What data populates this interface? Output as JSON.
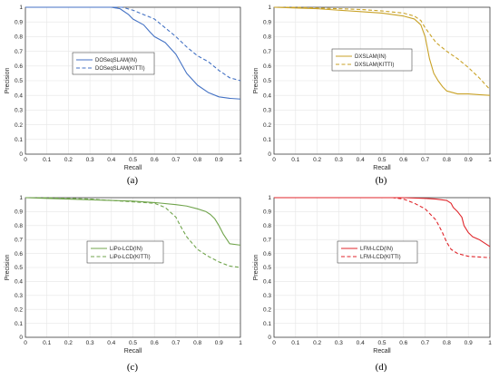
{
  "chart_data": [
    {
      "type": "line",
      "panel": "(a)",
      "xlabel": "Recall",
      "ylabel": "Precision",
      "xlim": [
        0,
        1
      ],
      "ylim": [
        0,
        1
      ],
      "grid": true,
      "legend_placement": "center",
      "xticks": [
        "0",
        "0.1",
        "0.2",
        "0.3",
        "0.4",
        "0.5",
        "0.6",
        "0.7",
        "0.8",
        "0.9",
        "1"
      ],
      "yticks": [
        "0",
        "0.1",
        "0.2",
        "0.3",
        "0.4",
        "0.5",
        "0.6",
        "0.7",
        "0.8",
        "0.9",
        "1"
      ],
      "series": [
        {
          "name": "DOSeqSLAM(IN)",
          "color": "#4472c4",
          "dash": "solid",
          "x": [
            0,
            0.1,
            0.2,
            0.3,
            0.4,
            0.44,
            0.48,
            0.5,
            0.55,
            0.58,
            0.6,
            0.65,
            0.7,
            0.75,
            0.8,
            0.85,
            0.9,
            0.95,
            1
          ],
          "y": [
            1,
            1,
            1,
            1,
            1,
            0.99,
            0.95,
            0.92,
            0.88,
            0.83,
            0.8,
            0.76,
            0.68,
            0.55,
            0.47,
            0.42,
            0.39,
            0.38,
            0.375
          ]
        },
        {
          "name": "DOSeqSLAM(KITTI)",
          "color": "#4472c4",
          "dash": "dashed",
          "x": [
            0,
            0.1,
            0.2,
            0.3,
            0.4,
            0.45,
            0.5,
            0.55,
            0.6,
            0.65,
            0.7,
            0.75,
            0.8,
            0.85,
            0.9,
            0.95,
            1
          ],
          "y": [
            1,
            1,
            1,
            1,
            1,
            1,
            0.98,
            0.95,
            0.92,
            0.86,
            0.8,
            0.73,
            0.67,
            0.63,
            0.57,
            0.52,
            0.5
          ]
        }
      ]
    },
    {
      "type": "line",
      "panel": "(b)",
      "xlabel": "Recall",
      "ylabel": "Precision",
      "xlim": [
        0,
        1
      ],
      "ylim": [
        0,
        1
      ],
      "grid": true,
      "legend_placement": "center",
      "xticks": [
        "0",
        "0.1",
        "0.2",
        "0.3",
        "0.4",
        "0.5",
        "0.6",
        "0.7",
        "0.8",
        "0.9",
        "1"
      ],
      "yticks": [
        "0",
        "0.1",
        "0.2",
        "0.3",
        "0.4",
        "0.5",
        "0.6",
        "0.7",
        "0.8",
        "0.9",
        "1"
      ],
      "series": [
        {
          "name": "DXSLAM(IN)",
          "color": "#c9a227",
          "dash": "solid",
          "x": [
            0,
            0.1,
            0.2,
            0.3,
            0.4,
            0.5,
            0.6,
            0.65,
            0.68,
            0.7,
            0.72,
            0.74,
            0.76,
            0.78,
            0.8,
            0.85,
            0.9,
            0.95,
            1
          ],
          "y": [
            1,
            0.995,
            0.99,
            0.98,
            0.97,
            0.96,
            0.94,
            0.92,
            0.88,
            0.8,
            0.65,
            0.55,
            0.5,
            0.46,
            0.43,
            0.41,
            0.41,
            0.405,
            0.4
          ]
        },
        {
          "name": "DXSLAM(KITTI)",
          "color": "#c9a227",
          "dash": "dashed",
          "x": [
            0,
            0.1,
            0.2,
            0.3,
            0.4,
            0.5,
            0.6,
            0.65,
            0.68,
            0.7,
            0.72,
            0.75,
            0.8,
            0.85,
            0.9,
            0.95,
            1
          ],
          "y": [
            1,
            1,
            0.995,
            0.99,
            0.985,
            0.975,
            0.96,
            0.94,
            0.91,
            0.86,
            0.82,
            0.76,
            0.7,
            0.65,
            0.59,
            0.52,
            0.44
          ]
        }
      ]
    },
    {
      "type": "line",
      "panel": "(c)",
      "xlabel": "Recall",
      "ylabel": "Precision",
      "xlim": [
        0,
        1
      ],
      "ylim": [
        0,
        1
      ],
      "grid": true,
      "legend_placement": "center",
      "xticks": [
        "0",
        "0.1",
        "0.2",
        "0.3",
        "0.4",
        "0.5",
        "0.6",
        "0.7",
        "0.8",
        "0.9",
        "1"
      ],
      "yticks": [
        "0",
        "0.1",
        "0.2",
        "0.3",
        "0.4",
        "0.5",
        "0.6",
        "0.7",
        "0.8",
        "0.9",
        "1"
      ],
      "series": [
        {
          "name": "LiPo-LCD(IN)",
          "color": "#70a44c",
          "dash": "solid",
          "x": [
            0,
            0.1,
            0.2,
            0.3,
            0.4,
            0.5,
            0.6,
            0.7,
            0.75,
            0.8,
            0.84,
            0.86,
            0.88,
            0.9,
            0.92,
            0.95,
            1
          ],
          "y": [
            1,
            0.995,
            0.99,
            0.985,
            0.98,
            0.975,
            0.965,
            0.95,
            0.94,
            0.92,
            0.9,
            0.88,
            0.85,
            0.8,
            0.74,
            0.67,
            0.66
          ]
        },
        {
          "name": "LiPo-LCD(KITTI)",
          "color": "#70a44c",
          "dash": "dashed",
          "x": [
            0,
            0.1,
            0.2,
            0.3,
            0.4,
            0.5,
            0.6,
            0.65,
            0.7,
            0.72,
            0.75,
            0.8,
            0.85,
            0.9,
            0.95,
            1
          ],
          "y": [
            1,
            1,
            0.995,
            0.99,
            0.98,
            0.97,
            0.96,
            0.93,
            0.86,
            0.8,
            0.72,
            0.63,
            0.58,
            0.54,
            0.51,
            0.5
          ]
        }
      ]
    },
    {
      "type": "line",
      "panel": "(d)",
      "xlabel": "Recall",
      "ylabel": "Precision",
      "xlim": [
        0,
        1
      ],
      "ylim": [
        0,
        1
      ],
      "grid": true,
      "legend_placement": "center",
      "xticks": [
        "0",
        "0.1",
        "0.2",
        "0.3",
        "0.4",
        "0.5",
        "0.6",
        "0.7",
        "0.8",
        "0.9",
        "1"
      ],
      "yticks": [
        "0",
        "0.1",
        "0.2",
        "0.3",
        "0.4",
        "0.5",
        "0.6",
        "0.7",
        "0.8",
        "0.9",
        "1"
      ],
      "series": [
        {
          "name": "LFM-LCD(IN)",
          "color": "#e0262b",
          "dash": "solid",
          "x": [
            0,
            0.1,
            0.2,
            0.3,
            0.4,
            0.5,
            0.6,
            0.7,
            0.75,
            0.8,
            0.82,
            0.83,
            0.85,
            0.87,
            0.88,
            0.9,
            0.92,
            0.95,
            1
          ],
          "y": [
            1,
            1,
            1,
            1,
            1,
            1,
            1,
            0.995,
            0.99,
            0.98,
            0.96,
            0.93,
            0.9,
            0.86,
            0.8,
            0.75,
            0.72,
            0.7,
            0.65
          ]
        },
        {
          "name": "LFM-LCD(KITTI)",
          "color": "#e0262b",
          "dash": "dashed",
          "x": [
            0,
            0.1,
            0.2,
            0.3,
            0.4,
            0.5,
            0.55,
            0.6,
            0.65,
            0.7,
            0.75,
            0.78,
            0.8,
            0.82,
            0.85,
            0.9,
            0.95,
            1
          ],
          "y": [
            1,
            1,
            1,
            1,
            1,
            1,
            1,
            0.99,
            0.96,
            0.92,
            0.84,
            0.75,
            0.68,
            0.63,
            0.6,
            0.58,
            0.575,
            0.57
          ]
        }
      ]
    }
  ]
}
